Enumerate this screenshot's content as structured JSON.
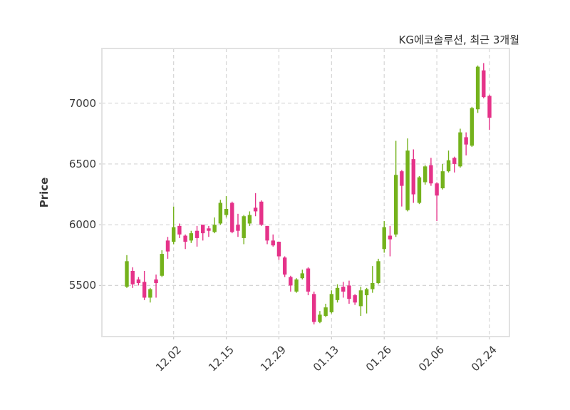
{
  "figure": {
    "title": "KG에코솔루션, 최근 3개월",
    "ylabel": "Price"
  },
  "chart_data": {
    "type": "candlestick",
    "title": "KG에코솔루션, 최근 3개월",
    "ylabel": "Price",
    "xlabel": "",
    "legend": "none",
    "grid": "dashed, both axes",
    "ylim": [
      5080,
      7450
    ],
    "yticks": [
      5500,
      6000,
      6500,
      7000
    ],
    "x_tick_labels": [
      "12.02",
      "12.15",
      "12.29",
      "01.13",
      "01.26",
      "02.06",
      "02.24"
    ],
    "x_tick_indices": [
      8,
      17,
      26,
      35,
      44,
      53,
      62
    ],
    "up_color": "#74b21c",
    "down_color": "#e53289",
    "grid_color": "#d5d5d5",
    "axis_color": "#e2e2e2",
    "tick_color": "#c9c9c9",
    "text_color": "#3a3a3a",
    "ohlc_format": [
      "open",
      "high",
      "low",
      "close"
    ],
    "candles_ohlc": [
      [
        5490,
        5750,
        5480,
        5700
      ],
      [
        5620,
        5650,
        5480,
        5510
      ],
      [
        5550,
        5570,
        5500,
        5520
      ],
      [
        5530,
        5620,
        5380,
        5400
      ],
      [
        5400,
        5480,
        5360,
        5470
      ],
      [
        5550,
        5590,
        5400,
        5520
      ],
      [
        5580,
        5790,
        5570,
        5760
      ],
      [
        5870,
        5900,
        5720,
        5780
      ],
      [
        5860,
        6150,
        5840,
        5980
      ],
      [
        5990,
        6010,
        5890,
        5920
      ],
      [
        5910,
        5920,
        5800,
        5860
      ],
      [
        5870,
        5950,
        5850,
        5930
      ],
      [
        5950,
        5990,
        5820,
        5890
      ],
      [
        6000,
        6000,
        5870,
        5930
      ],
      [
        5970,
        5990,
        5900,
        5950
      ],
      [
        5940,
        6060,
        5930,
        6000
      ],
      [
        6010,
        6205,
        6000,
        6180
      ],
      [
        6080,
        6235,
        6060,
        6130
      ],
      [
        6180,
        6190,
        5930,
        5940
      ],
      [
        6000,
        6090,
        5900,
        5950
      ],
      [
        5890,
        6080,
        5840,
        6070
      ],
      [
        6010,
        6110,
        5990,
        6080
      ],
      [
        6140,
        6260,
        6070,
        6110
      ],
      [
        6190,
        6200,
        5990,
        6000
      ],
      [
        5990,
        5990,
        5840,
        5870
      ],
      [
        5870,
        5920,
        5820,
        5830
      ],
      [
        5860,
        5860,
        5710,
        5740
      ],
      [
        5730,
        5740,
        5570,
        5590
      ],
      [
        5570,
        5580,
        5450,
        5500
      ],
      [
        5450,
        5560,
        5440,
        5550
      ],
      [
        5560,
        5630,
        5550,
        5600
      ],
      [
        5640,
        5650,
        5420,
        5450
      ],
      [
        5430,
        5450,
        5180,
        5200
      ],
      [
        5200,
        5290,
        5190,
        5260
      ],
      [
        5250,
        5350,
        5240,
        5320
      ],
      [
        5280,
        5460,
        5270,
        5430
      ],
      [
        5380,
        5510,
        5360,
        5480
      ],
      [
        5490,
        5530,
        5400,
        5450
      ],
      [
        5500,
        5540,
        5350,
        5390
      ],
      [
        5420,
        5430,
        5340,
        5360
      ],
      [
        5330,
        5490,
        5250,
        5460
      ],
      [
        5420,
        5480,
        5270,
        5470
      ],
      [
        5470,
        5660,
        5440,
        5520
      ],
      [
        5520,
        5720,
        5510,
        5700
      ],
      [
        5800,
        6030,
        5770,
        5980
      ],
      [
        5910,
        5990,
        5740,
        5880
      ],
      [
        5920,
        6690,
        5900,
        6410
      ],
      [
        6440,
        6450,
        6150,
        6320
      ],
      [
        6120,
        6710,
        6110,
        6610
      ],
      [
        6540,
        6620,
        6180,
        6250
      ],
      [
        6180,
        6400,
        6170,
        6390
      ],
      [
        6350,
        6490,
        6330,
        6480
      ],
      [
        6490,
        6550,
        6320,
        6340
      ],
      [
        6340,
        6350,
        6030,
        6240
      ],
      [
        6300,
        6500,
        6290,
        6440
      ],
      [
        6440,
        6610,
        6430,
        6530
      ],
      [
        6550,
        6560,
        6430,
        6500
      ],
      [
        6480,
        6790,
        6470,
        6760
      ],
      [
        6720,
        6760,
        6570,
        6660
      ],
      [
        6650,
        6970,
        6640,
        6960
      ],
      [
        6950,
        7310,
        6920,
        7300
      ],
      [
        7270,
        7330,
        7040,
        7050
      ],
      [
        7060,
        7070,
        6780,
        6880
      ]
    ]
  }
}
